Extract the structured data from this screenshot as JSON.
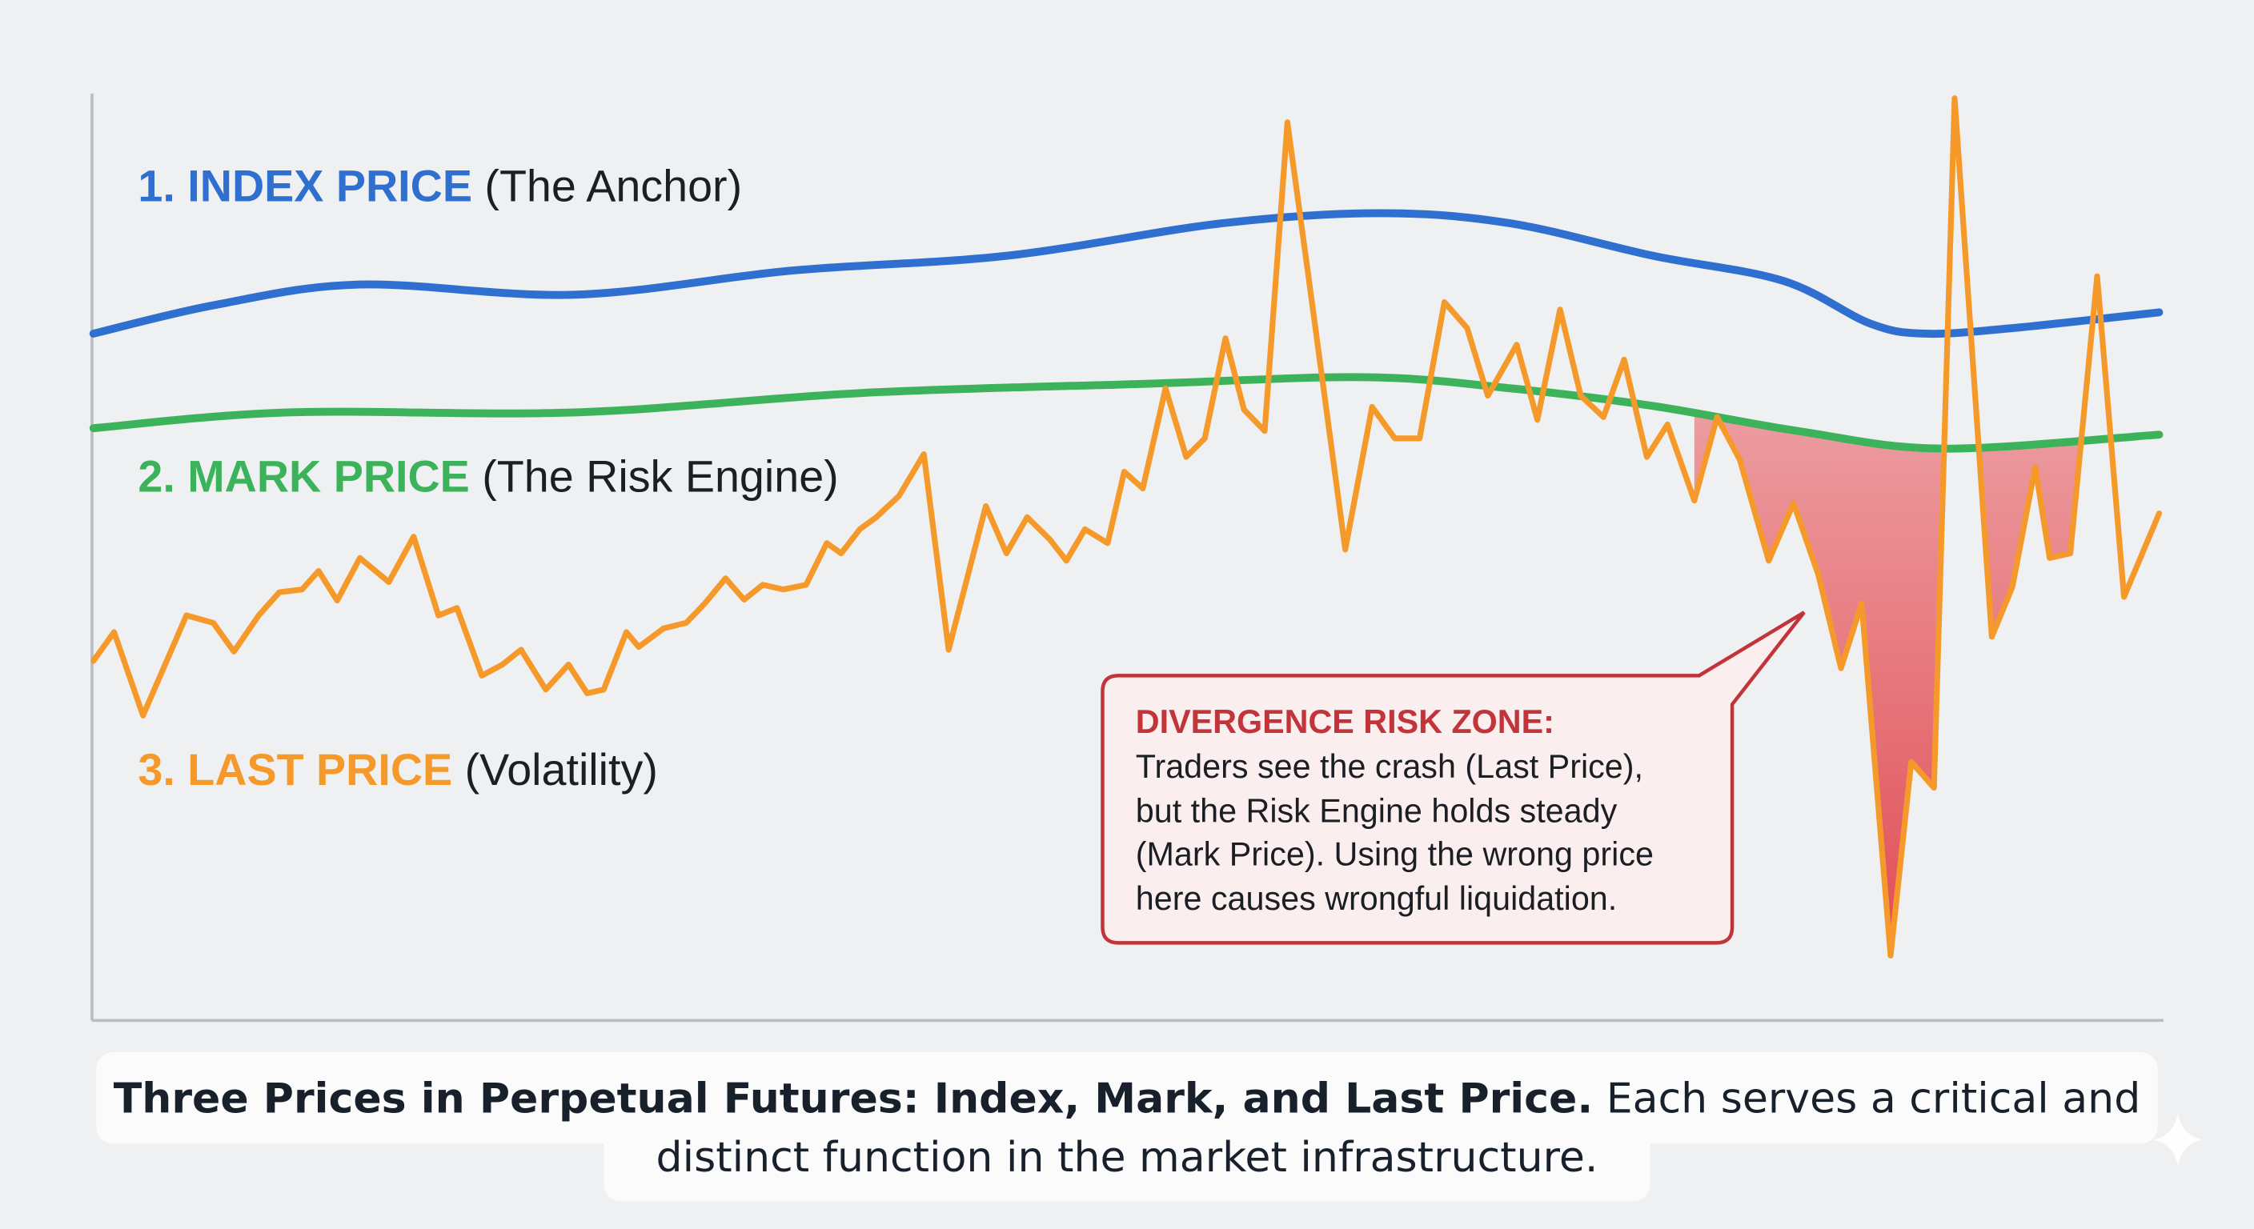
{
  "chart_data": {
    "type": "line",
    "title": "",
    "xlabel": "",
    "ylabel": "",
    "xlim": [
      0,
      100
    ],
    "ylim": [
      0,
      100
    ],
    "grid": false,
    "axis_ticks": false,
    "series": [
      {
        "name": "1. INDEX PRICE",
        "name_suffix": "(The Anchor)",
        "color": "#2f6fd0",
        "smooth": true,
        "points": [
          [
            0,
            74.1
          ],
          [
            5.9,
            77.2
          ],
          [
            12.9,
            79.4
          ],
          [
            23.3,
            78.3
          ],
          [
            33.8,
            80.9
          ],
          [
            44.2,
            82.5
          ],
          [
            54.6,
            86.0
          ],
          [
            62.3,
            87.1
          ],
          [
            68.6,
            86.0
          ],
          [
            75.5,
            82.5
          ],
          [
            81.8,
            79.8
          ],
          [
            86.0,
            75.2
          ],
          [
            88.7,
            74.1
          ],
          [
            92.9,
            74.7
          ],
          [
            100,
            76.4
          ]
        ]
      },
      {
        "name": "2. MARK PRICE",
        "name_suffix": "(The Risk Engine)",
        "color": "#3cb35a",
        "smooth": true,
        "points": [
          [
            0,
            63.9
          ],
          [
            9.4,
            65.6
          ],
          [
            23.3,
            65.6
          ],
          [
            37.2,
            67.7
          ],
          [
            51.1,
            68.7
          ],
          [
            61.6,
            69.4
          ],
          [
            68.6,
            68.2
          ],
          [
            75.5,
            66.3
          ],
          [
            82.5,
            63.6
          ],
          [
            89.5,
            61.7
          ],
          [
            100,
            63.2
          ]
        ]
      },
      {
        "name": "3. LAST PRICE",
        "name_suffix": "(Volatility)",
        "color": "#f59a2a",
        "smooth": false,
        "points": [
          [
            0,
            38.8
          ],
          [
            1.0,
            41.9
          ],
          [
            2.4,
            32.9
          ],
          [
            4.5,
            43.7
          ],
          [
            5.8,
            42.9
          ],
          [
            6.8,
            39.8
          ],
          [
            8.0,
            43.7
          ],
          [
            9.0,
            46.2
          ],
          [
            10.1,
            46.5
          ],
          [
            10.9,
            48.5
          ],
          [
            11.8,
            45.3
          ],
          [
            12.9,
            49.9
          ],
          [
            14.3,
            47.3
          ],
          [
            15.5,
            52.2
          ],
          [
            16.7,
            43.7
          ],
          [
            17.6,
            44.5
          ],
          [
            18.8,
            37.2
          ],
          [
            19.8,
            38.4
          ],
          [
            20.7,
            40.0
          ],
          [
            21.9,
            35.7
          ],
          [
            23.0,
            38.4
          ],
          [
            23.9,
            35.3
          ],
          [
            24.7,
            35.7
          ],
          [
            25.8,
            41.9
          ],
          [
            26.4,
            40.3
          ],
          [
            27.6,
            42.3
          ],
          [
            28.7,
            42.9
          ],
          [
            29.6,
            45.0
          ],
          [
            30.6,
            47.7
          ],
          [
            31.5,
            45.4
          ],
          [
            32.4,
            47.0
          ],
          [
            33.4,
            46.5
          ],
          [
            34.5,
            47.0
          ],
          [
            35.5,
            51.5
          ],
          [
            36.2,
            50.4
          ],
          [
            37.1,
            53.0
          ],
          [
            37.9,
            54.3
          ],
          [
            39.0,
            56.6
          ],
          [
            40.2,
            61.1
          ],
          [
            41.4,
            40.0
          ],
          [
            43.2,
            55.5
          ],
          [
            44.2,
            50.4
          ],
          [
            45.2,
            54.3
          ],
          [
            46.3,
            51.9
          ],
          [
            47.1,
            49.6
          ],
          [
            48.0,
            53.0
          ],
          [
            49.1,
            51.5
          ],
          [
            49.9,
            59.2
          ],
          [
            50.8,
            57.4
          ],
          [
            51.9,
            68.2
          ],
          [
            52.9,
            60.8
          ],
          [
            53.8,
            62.8
          ],
          [
            54.8,
            73.6
          ],
          [
            55.7,
            65.9
          ],
          [
            56.7,
            63.6
          ],
          [
            57.8,
            96.9
          ],
          [
            58.8,
            80.6
          ],
          [
            60.6,
            50.8
          ],
          [
            61.9,
            66.2
          ],
          [
            63.0,
            62.8
          ],
          [
            64.2,
            62.8
          ],
          [
            65.4,
            77.5
          ],
          [
            66.5,
            74.7
          ],
          [
            67.5,
            67.4
          ],
          [
            68.9,
            72.9
          ],
          [
            69.9,
            64.8
          ],
          [
            71.0,
            76.7
          ],
          [
            72.0,
            67.4
          ],
          [
            73.1,
            65.1
          ],
          [
            74.1,
            71.3
          ],
          [
            75.2,
            60.8
          ],
          [
            76.2,
            64.3
          ],
          [
            77.5,
            56.1
          ],
          [
            78.6,
            65.1
          ],
          [
            79.7,
            60.5
          ],
          [
            81.1,
            49.6
          ],
          [
            82.3,
            55.8
          ],
          [
            83.5,
            48.1
          ],
          [
            84.6,
            38.0
          ],
          [
            85.6,
            45.0
          ],
          [
            87.0,
            7.0
          ],
          [
            88.0,
            27.9
          ],
          [
            89.1,
            25.1
          ],
          [
            90.1,
            99.5
          ],
          [
            91.9,
            41.4
          ],
          [
            92.9,
            46.8
          ],
          [
            94.0,
            59.7
          ],
          [
            94.7,
            49.9
          ],
          [
            95.7,
            50.4
          ],
          [
            97.0,
            80.3
          ],
          [
            98.3,
            45.7
          ],
          [
            100,
            54.7
          ]
        ]
      }
    ],
    "shaded_region": {
      "between": [
        "2. MARK PRICE",
        "3. LAST PRICE"
      ],
      "x_range": [
        77.5,
        97.5
      ],
      "color": "#e0444c"
    },
    "annotation": {
      "title": "DIVERGENCE RISK ZONE:",
      "lines": [
        "Traders see the crash (Last Price),",
        "but the Risk Engine holds steady",
        "(Mark Price). Using the wrong price",
        "here causes wrongful liquidation."
      ],
      "color": "#c0343a"
    }
  },
  "caption": {
    "bold": "Three Prices in Perpetual Futures: Index, Mark, and Last Price.",
    "rest_line1": " Each serves a critical and",
    "line2": "distinct function in the market infrastructure."
  },
  "colors": {
    "axis": "#b9bcc0",
    "background": "#eef0f2",
    "text": "#1b1f24"
  }
}
